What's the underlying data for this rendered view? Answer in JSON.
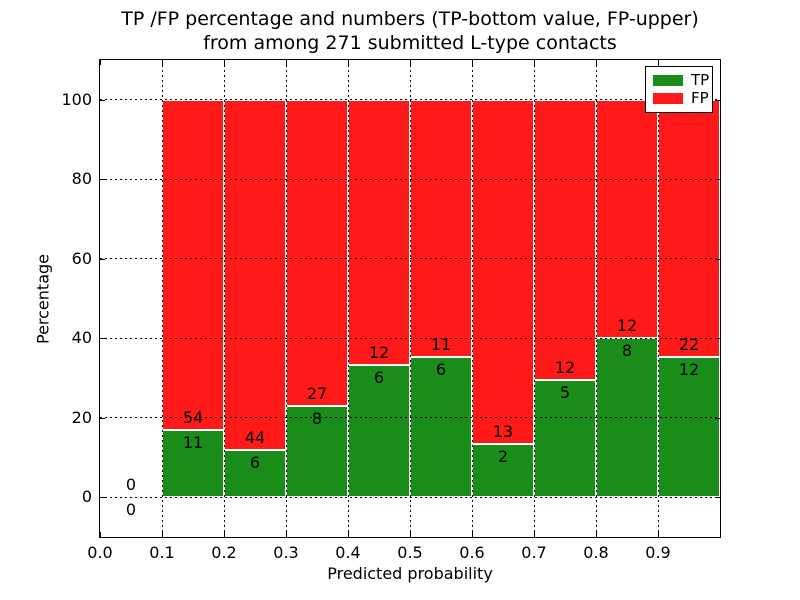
{
  "title": {
    "line1": "TP /FP percentage and numbers (TP-bottom value, FP-upper)",
    "line2": "from among 271 submitted L-type contacts"
  },
  "axes": {
    "xlabel": "Predicted probability",
    "ylabel": "Percentage"
  },
  "chart_data": {
    "type": "bar",
    "stacked": true,
    "normalization": "percent-of-bin-total",
    "title": "TP /FP percentage and numbers (TP-bottom value, FP-upper) from among 271 submitted L-type contacts",
    "xlabel": "Predicted probability",
    "ylabel": "Percentage",
    "xlim": [
      0.0,
      1.0
    ],
    "ylim": [
      -10,
      110
    ],
    "grid": {
      "style": "dotted",
      "color": "#000000"
    },
    "colors": {
      "tp": "#1a8c1a",
      "fp": "#ff1a1a",
      "edge": "#ffffff"
    },
    "legend": {
      "position": "upper right",
      "items": [
        {
          "label": "TP",
          "color": "#1a8c1a"
        },
        {
          "label": "FP",
          "color": "#ff1a1a"
        }
      ]
    },
    "total_contacts": 271,
    "xticks": [
      {
        "v": 0.0,
        "label": "0.0"
      },
      {
        "v": 0.1,
        "label": "0.1"
      },
      {
        "v": 0.2,
        "label": "0.2"
      },
      {
        "v": 0.3,
        "label": "0.3"
      },
      {
        "v": 0.4,
        "label": "0.4"
      },
      {
        "v": 0.5,
        "label": "0.5"
      },
      {
        "v": 0.6,
        "label": "0.6"
      },
      {
        "v": 0.7,
        "label": "0.7"
      },
      {
        "v": 0.8,
        "label": "0.8"
      },
      {
        "v": 0.9,
        "label": "0.9"
      }
    ],
    "yticks": [
      {
        "v": 0,
        "label": "0"
      },
      {
        "v": 20,
        "label": "20"
      },
      {
        "v": 40,
        "label": "40"
      },
      {
        "v": 60,
        "label": "60"
      },
      {
        "v": 80,
        "label": "80"
      },
      {
        "v": 100,
        "label": "100"
      }
    ],
    "bins": [
      {
        "range": [
          0.0,
          0.1
        ],
        "tp": 0,
        "fp": 0,
        "tp_pct": 0
      },
      {
        "range": [
          0.1,
          0.2
        ],
        "tp": 11,
        "fp": 54,
        "tp_pct": 16.92
      },
      {
        "range": [
          0.2,
          0.3
        ],
        "tp": 6,
        "fp": 44,
        "tp_pct": 12.0
      },
      {
        "range": [
          0.3,
          0.4
        ],
        "tp": 8,
        "fp": 27,
        "tp_pct": 22.86
      },
      {
        "range": [
          0.4,
          0.5
        ],
        "tp": 6,
        "fp": 12,
        "tp_pct": 33.33
      },
      {
        "range": [
          0.5,
          0.6
        ],
        "tp": 6,
        "fp": 11,
        "tp_pct": 35.29
      },
      {
        "range": [
          0.6,
          0.7
        ],
        "tp": 2,
        "fp": 13,
        "tp_pct": 13.33
      },
      {
        "range": [
          0.7,
          0.8
        ],
        "tp": 5,
        "fp": 12,
        "tp_pct": 29.41
      },
      {
        "range": [
          0.8,
          0.9
        ],
        "tp": 8,
        "fp": 12,
        "tp_pct": 40.0
      },
      {
        "range": [
          0.9,
          1.0
        ],
        "tp": 12,
        "fp": 22,
        "tp_pct": 35.29
      }
    ]
  }
}
